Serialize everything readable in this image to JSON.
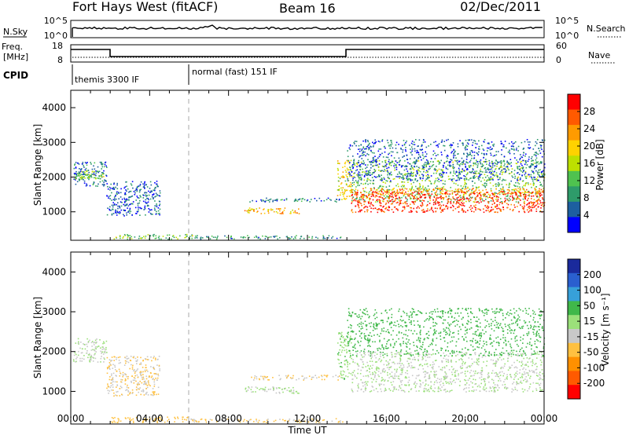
{
  "header": {
    "station": "Fort Hays West (fitACF)",
    "beam": "Beam 16",
    "date": "02/Dec/2011"
  },
  "strip": {
    "nsky_label": "N.Sky",
    "nsky_ticks": [
      "10^5",
      "10^0"
    ],
    "nsearch_label": "N.Search",
    "nsearch_ticks": [
      "10^5",
      "10^0"
    ],
    "freq_label_line1": "Freq.",
    "freq_label_line2": "[MHz]",
    "freq_ticks": [
      "18",
      "8"
    ],
    "nave_label": "Nave",
    "nave_ticks": [
      "60",
      "0"
    ],
    "cpid_label": "CPID",
    "cpid_segments": [
      "themis 3300 IF",
      "normal (fast) 151 IF"
    ],
    "cpid_change_time": "06:00"
  },
  "axes": {
    "ylabel": "Slant Range [km]",
    "xlabel": "Time UT",
    "y_ticks": [
      "1000",
      "2000",
      "3000",
      "4000"
    ],
    "x_ticks": [
      "00:00",
      "04:00",
      "08:00",
      "12:00",
      "16:00",
      "20:00",
      "00:00"
    ]
  },
  "colorbars": {
    "power": {
      "label": "Power [dB]",
      "ticks": [
        "28",
        "24",
        "20",
        "16",
        "12",
        "8",
        "4"
      ],
      "colors": [
        "#ff0000",
        "#ff5a00",
        "#ff9b00",
        "#ffd200",
        "#bde000",
        "#4fc24f",
        "#2e9b6a",
        "#1d5fa0",
        "#0000ff"
      ]
    },
    "velocity": {
      "label": "Velocity [m s⁻¹]",
      "ticks": [
        "200",
        "100",
        "50",
        "15",
        "-15",
        "-50",
        "-100",
        "-200"
      ],
      "colors": [
        "#1a2a9c",
        "#2a5fcf",
        "#37a0d9",
        "#40b84a",
        "#9be07a",
        "#c8c8c8",
        "#ffc040",
        "#ff9000",
        "#ff5a00",
        "#ff0000"
      ]
    }
  },
  "chart_data": [
    {
      "type": "heatmap",
      "panel": "power",
      "title": "Power [dB]",
      "xlabel": "Time UT",
      "ylabel": "Slant Range [km]",
      "x_unit": "hours UT",
      "xlim": [
        0,
        24
      ],
      "ylim": [
        180,
        4500
      ],
      "value_range": [
        0,
        30
      ],
      "regions": [
        {
          "t0": 0.1,
          "t1": 1.8,
          "r0": 1750,
          "r1": 2450,
          "value": 6
        },
        {
          "t0": 0.2,
          "t1": 1.7,
          "r0": 1950,
          "r1": 2200,
          "value": 12
        },
        {
          "t0": 1.8,
          "t1": 4.5,
          "r0": 900,
          "r1": 1900,
          "value": 5
        },
        {
          "t0": 2.0,
          "t1": 6.2,
          "r0": 230,
          "r1": 370,
          "value": 12
        },
        {
          "t0": 6.0,
          "t1": 13.8,
          "r0": 230,
          "r1": 330,
          "value": 8
        },
        {
          "t0": 8.8,
          "t1": 11.6,
          "r0": 960,
          "r1": 1130,
          "value": 20
        },
        {
          "t0": 9.0,
          "t1": 13.6,
          "r0": 1300,
          "r1": 1420,
          "value": 6
        },
        {
          "t0": 13.5,
          "t1": 14.2,
          "r0": 1300,
          "r1": 2500,
          "value": 18
        },
        {
          "t0": 14.2,
          "t1": 24.0,
          "r0": 1300,
          "r1": 2500,
          "value": 12
        },
        {
          "t0": 14.2,
          "t1": 24.0,
          "r0": 1500,
          "r1": 1700,
          "value": 22
        },
        {
          "t0": 14.2,
          "t1": 24.0,
          "r0": 1000,
          "r1": 1600,
          "value": 27
        },
        {
          "t0": 14.0,
          "t1": 24.0,
          "r0": 1900,
          "r1": 3100,
          "value": 5
        }
      ]
    },
    {
      "type": "heatmap",
      "panel": "velocity",
      "title": "Velocity [m s⁻¹]",
      "xlabel": "Time UT",
      "ylabel": "Slant Range [km]",
      "x_unit": "hours UT",
      "xlim": [
        0,
        24
      ],
      "ylim": [
        180,
        4500
      ],
      "value_range": [
        -200,
        200
      ],
      "regions": [
        {
          "t0": 0.1,
          "t1": 1.8,
          "r0": 1750,
          "r1": 2350,
          "value": 0
        },
        {
          "t0": 1.8,
          "t1": 4.5,
          "r0": 900,
          "r1": 1900,
          "value": -40
        },
        {
          "t0": 2.0,
          "t1": 6.2,
          "r0": 230,
          "r1": 370,
          "value": -60
        },
        {
          "t0": 6.0,
          "t1": 13.8,
          "r0": 230,
          "r1": 330,
          "value": -50
        },
        {
          "t0": 8.8,
          "t1": 11.6,
          "r0": 960,
          "r1": 1130,
          "value": 0
        },
        {
          "t0": 9.0,
          "t1": 13.6,
          "r0": 1300,
          "r1": 1420,
          "value": -40
        },
        {
          "t0": 13.5,
          "t1": 14.2,
          "r0": 1300,
          "r1": 2500,
          "value": 30
        },
        {
          "t0": 14.2,
          "t1": 24.0,
          "r0": 1000,
          "r1": 2000,
          "value": 0
        },
        {
          "t0": 14.0,
          "t1": 24.0,
          "r0": 1900,
          "r1": 3100,
          "value": 60
        }
      ]
    }
  ]
}
